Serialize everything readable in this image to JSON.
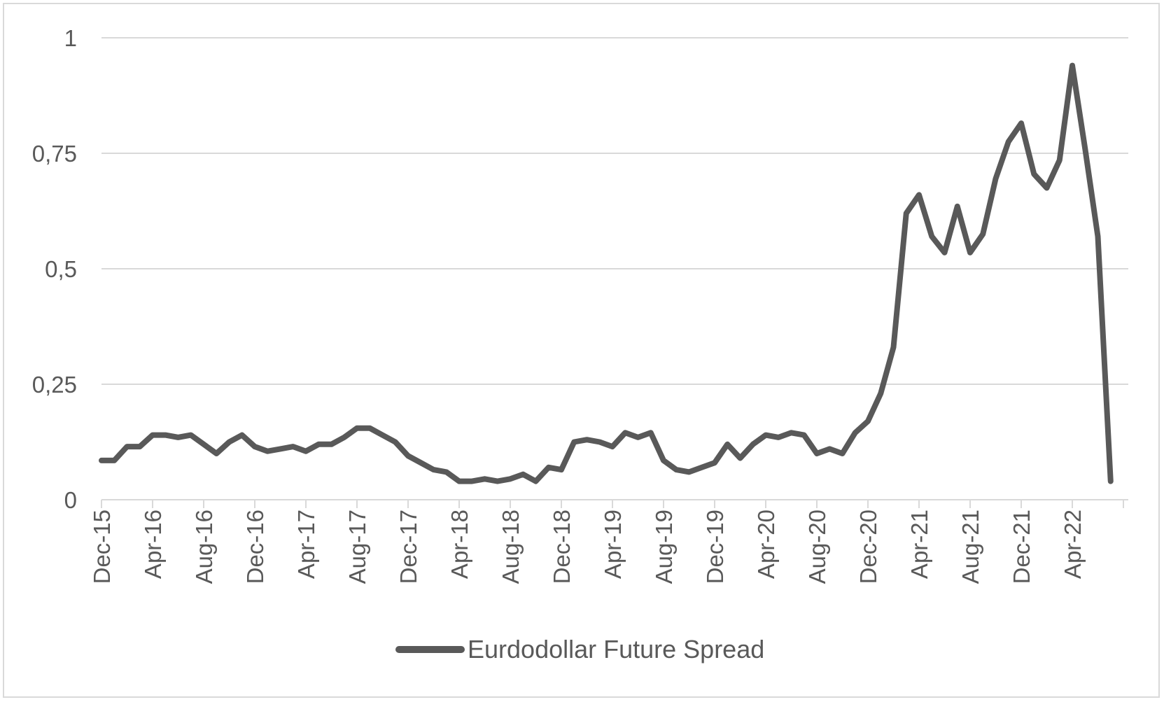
{
  "chart_data": {
    "type": "line",
    "title": "",
    "xlabel": "",
    "ylabel": "",
    "ylim": [
      0,
      1
    ],
    "yticks": [
      {
        "value": 0,
        "label": "0"
      },
      {
        "value": 0.25,
        "label": "0,25"
      },
      {
        "value": 0.5,
        "label": "0,5"
      },
      {
        "value": 0.75,
        "label": "0,75"
      },
      {
        "value": 1,
        "label": "1"
      }
    ],
    "xtick_labels": [
      "Dec-15",
      "Apr-16",
      "Aug-16",
      "Dec-16",
      "Apr-17",
      "Aug-17",
      "Dec-17",
      "Apr-18",
      "Aug-18",
      "Dec-18",
      "Apr-19",
      "Aug-19",
      "Dec-19",
      "Apr-20",
      "Aug-20",
      "Dec-20",
      "Apr-21",
      "Aug-21",
      "Dec-21",
      "Apr-22"
    ],
    "grid": true,
    "legend_position": "bottom",
    "series": [
      {
        "name": "Eurdodollar Future Spread",
        "color": "#595959",
        "x": [
          "Dec-15",
          "Jan-16",
          "Feb-16",
          "Mar-16",
          "Apr-16",
          "May-16",
          "Jun-16",
          "Jul-16",
          "Aug-16",
          "Sep-16",
          "Oct-16",
          "Nov-16",
          "Dec-16",
          "Jan-17",
          "Feb-17",
          "Mar-17",
          "Apr-17",
          "May-17",
          "Jun-17",
          "Jul-17",
          "Aug-17",
          "Sep-17",
          "Oct-17",
          "Nov-17",
          "Dec-17",
          "Jan-18",
          "Feb-18",
          "Mar-18",
          "Apr-18",
          "May-18",
          "Jun-18",
          "Jul-18",
          "Aug-18",
          "Sep-18",
          "Oct-18",
          "Nov-18",
          "Dec-18",
          "Jan-19",
          "Feb-19",
          "Mar-19",
          "Apr-19",
          "May-19",
          "Jun-19",
          "Jul-19",
          "Aug-19",
          "Sep-19",
          "Oct-19",
          "Nov-19",
          "Dec-19",
          "Jan-20",
          "Feb-20",
          "Mar-20",
          "Apr-20",
          "May-20",
          "Jun-20",
          "Jul-20",
          "Aug-20",
          "Sep-20",
          "Oct-20",
          "Nov-20",
          "Dec-20",
          "Jan-21",
          "Feb-21",
          "Mar-21",
          "Apr-21",
          "May-21",
          "Jun-21",
          "Jul-21",
          "Aug-21",
          "Sep-21",
          "Oct-21",
          "Nov-21",
          "Dec-21",
          "Jan-22",
          "Feb-22",
          "Mar-22",
          "Apr-22",
          "May-22",
          "Jun-22",
          "Jul-22"
        ],
        "values": [
          0.085,
          0.085,
          0.115,
          0.115,
          0.14,
          0.14,
          0.135,
          0.14,
          0.12,
          0.1,
          0.125,
          0.14,
          0.115,
          0.105,
          0.11,
          0.115,
          0.105,
          0.12,
          0.12,
          0.135,
          0.155,
          0.155,
          0.14,
          0.125,
          0.095,
          0.08,
          0.065,
          0.06,
          0.04,
          0.04,
          0.045,
          0.04,
          0.045,
          0.055,
          0.04,
          0.07,
          0.065,
          0.125,
          0.13,
          0.125,
          0.115,
          0.145,
          0.135,
          0.145,
          0.085,
          0.065,
          0.06,
          0.07,
          0.08,
          0.12,
          0.09,
          0.12,
          0.14,
          0.135,
          0.145,
          0.14,
          0.1,
          0.11,
          0.1,
          0.145,
          0.17,
          0.23,
          0.33,
          0.62,
          0.66,
          0.57,
          0.535,
          0.635,
          0.535,
          0.575,
          0.695,
          0.775,
          0.815,
          0.705,
          0.675,
          0.735,
          0.94,
          0.76,
          0.57,
          0.04
        ]
      }
    ]
  }
}
